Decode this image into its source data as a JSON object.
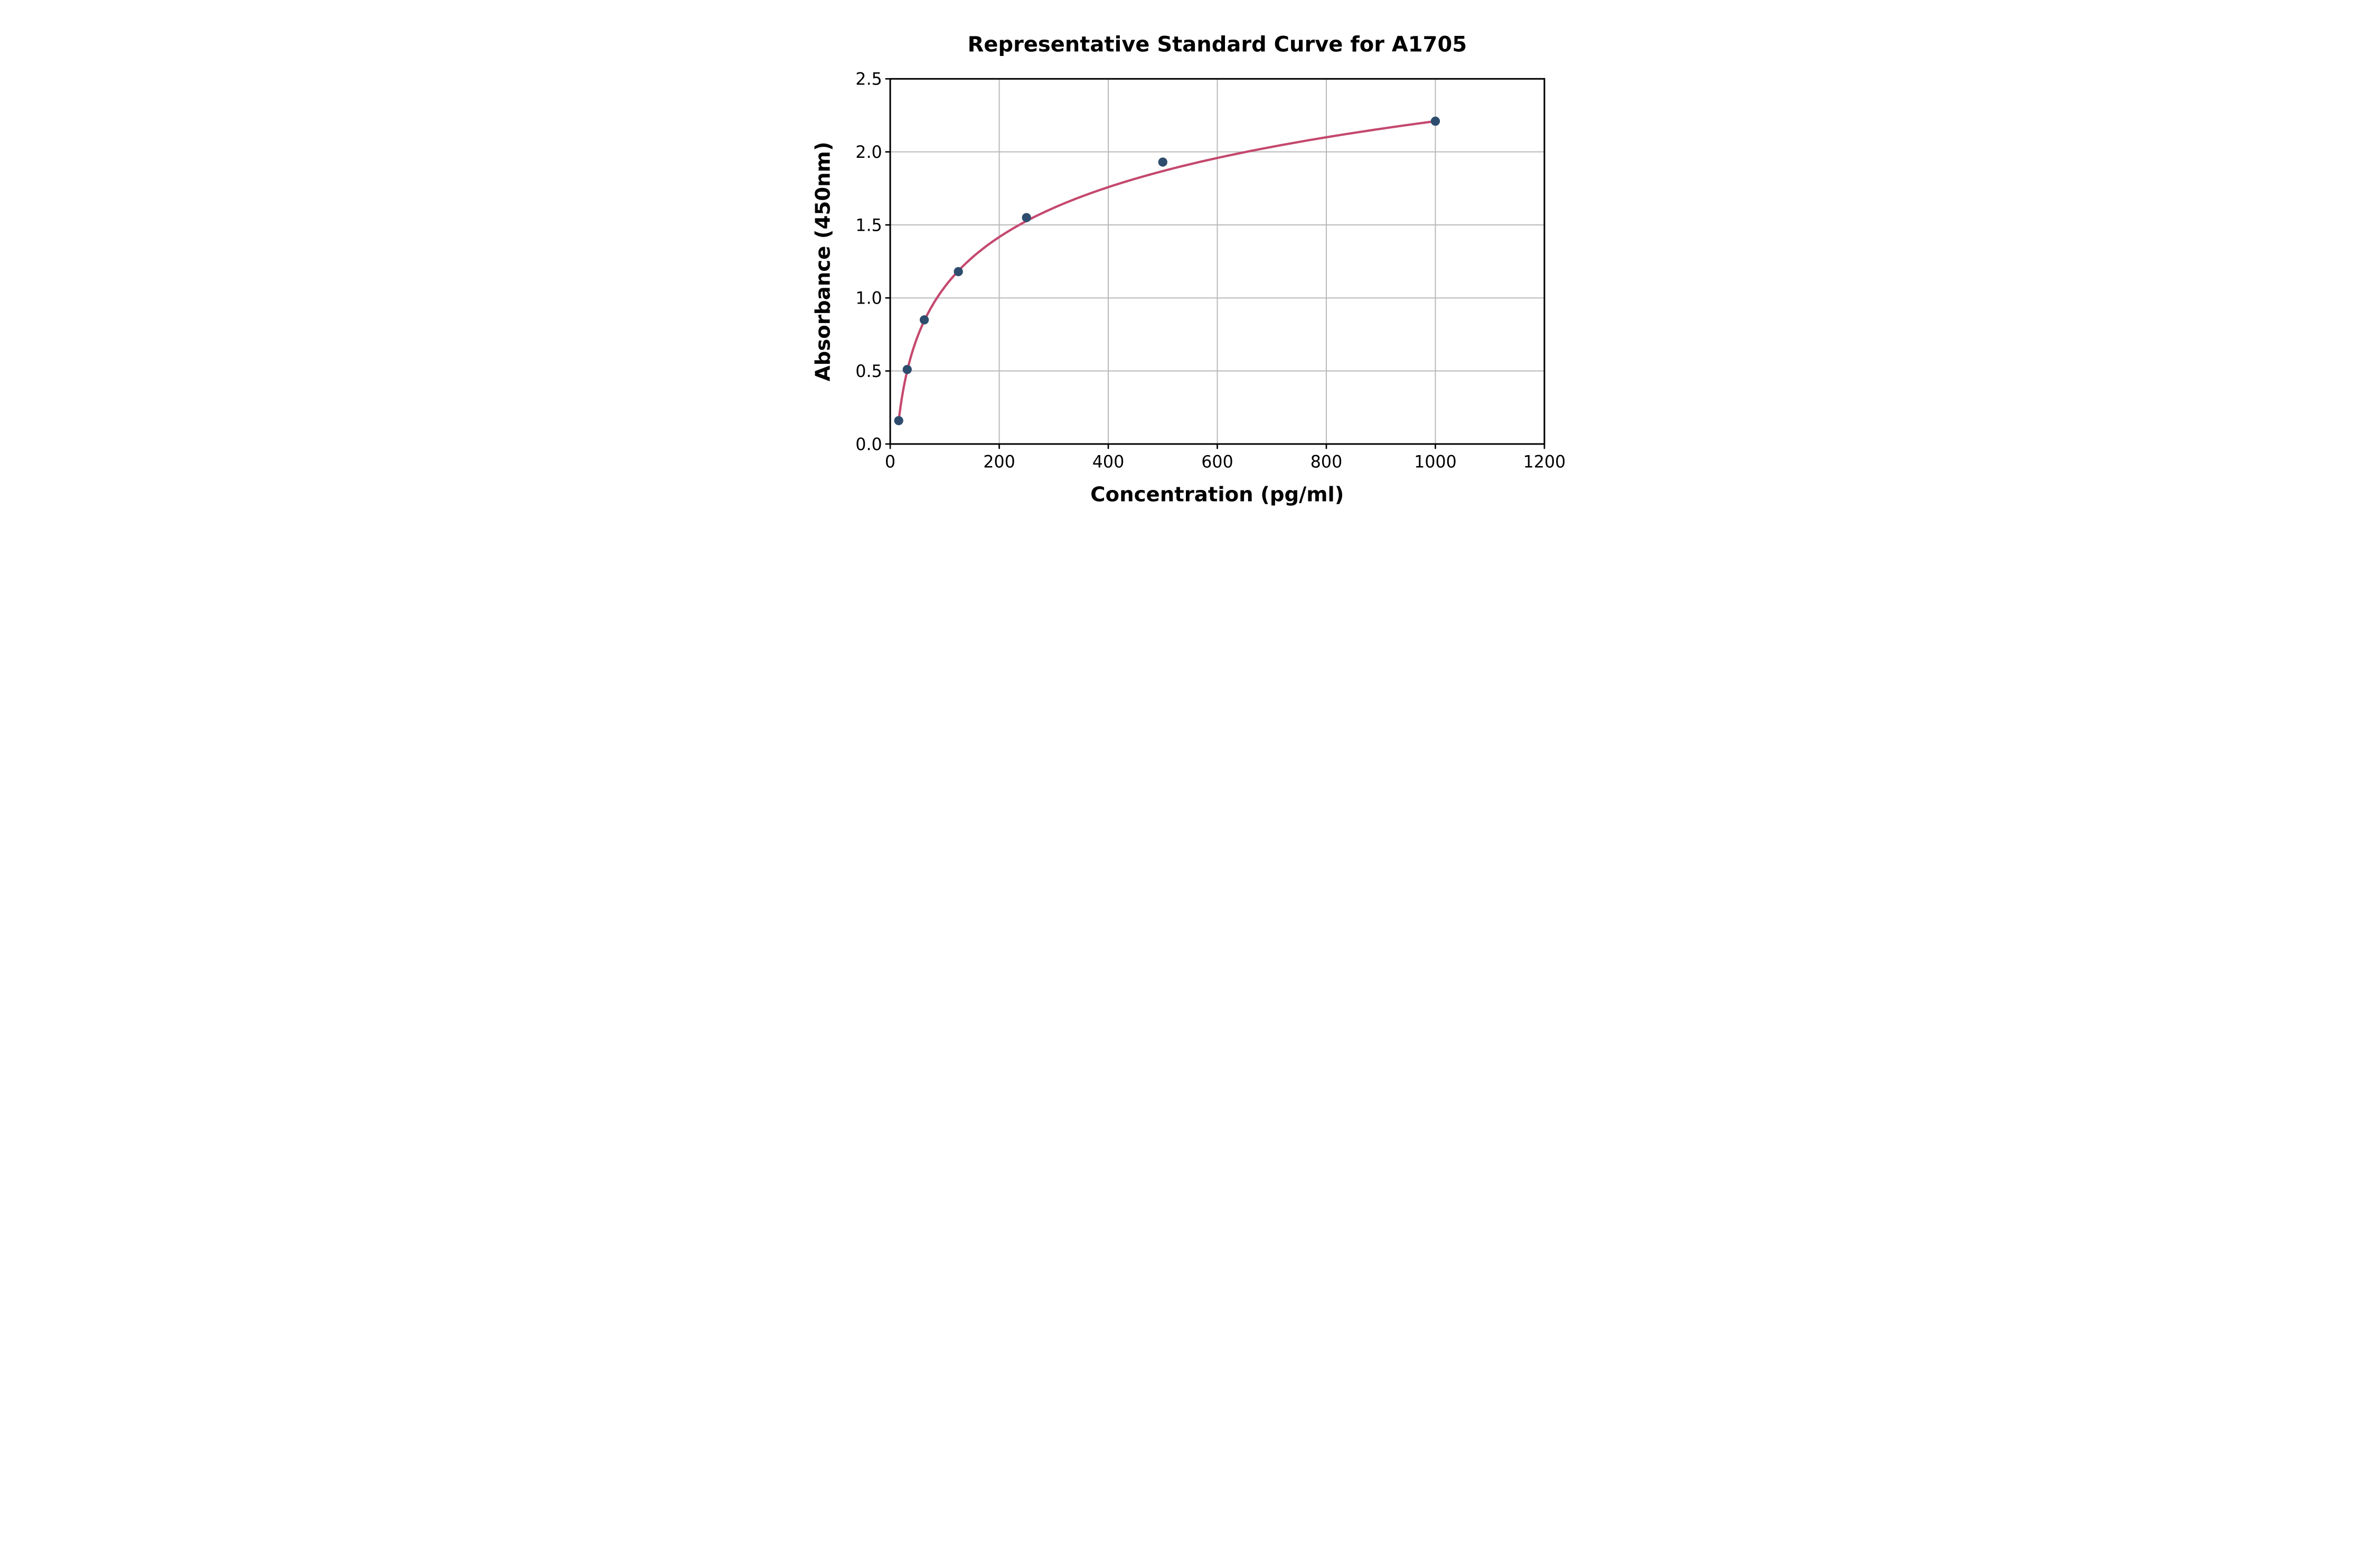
{
  "figure": {
    "background": "#ffffff"
  },
  "chart_data": {
    "type": "scatter",
    "title": "Representative Standard Curve for A1705",
    "xlabel": "Concentration (pg/ml)",
    "ylabel": "Absorbance (450nm)",
    "xlim": [
      0,
      1200
    ],
    "ylim": [
      0.0,
      2.5
    ],
    "x_ticks": [
      0,
      200,
      400,
      600,
      800,
      1000,
      1200
    ],
    "x_tick_labels": [
      "0",
      "200",
      "400",
      "600",
      "800",
      "1000",
      "1200"
    ],
    "y_ticks": [
      0.0,
      0.5,
      1.0,
      1.5,
      2.0,
      2.5
    ],
    "y_tick_labels": [
      "0.0",
      "0.5",
      "1.0",
      "1.5",
      "2.0",
      "2.5"
    ],
    "grid": true,
    "legend_position": "none",
    "series": [
      {
        "name": "standard-points",
        "type": "scatter",
        "points": [
          {
            "x": 15.6,
            "y": 0.16
          },
          {
            "x": 31.2,
            "y": 0.51
          },
          {
            "x": 62.5,
            "y": 0.85
          },
          {
            "x": 125,
            "y": 1.18
          },
          {
            "x": 250,
            "y": 1.55
          },
          {
            "x": 500,
            "y": 1.93
          },
          {
            "x": 1000,
            "y": 2.21
          }
        ]
      },
      {
        "name": "fitted-curve",
        "type": "line",
        "fit": {
          "model": "logarithmic",
          "equation": "y = 0.4927*ln(x) - 1.1935",
          "a": 0.4927,
          "b": -1.1935,
          "x_start": 15.6,
          "x_end": 1000
        }
      }
    ],
    "colors": {
      "curve": "#c4496f",
      "marker": "#2e4d6e",
      "grid": "#b9b9b9",
      "axis": "#000000",
      "text": "#000000",
      "background": "#ffffff"
    }
  }
}
